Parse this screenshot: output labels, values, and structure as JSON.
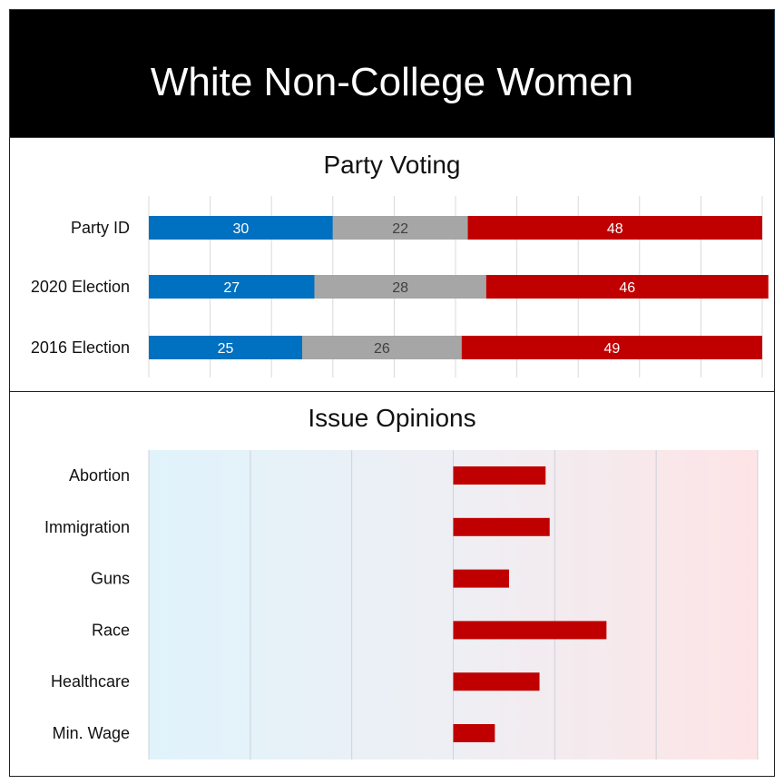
{
  "header": {
    "title": "White Non-College Women"
  },
  "colors": {
    "democrat": "#0070c0",
    "neutral": "#a6a6a6",
    "republican": "#c00000",
    "header_bg": "#000000",
    "gradient_left": "#e0f3fb",
    "gradient_right": "#fde4e6"
  },
  "chart_data": [
    {
      "type": "bar",
      "stacked": true,
      "orientation": "horizontal",
      "title": "Party Voting",
      "categories": [
        "Party ID",
        "2020 Election",
        "2016 Election"
      ],
      "series": [
        {
          "color": "#0070c0",
          "values": [
            30,
            27,
            25
          ]
        },
        {
          "color": "#a6a6a6",
          "values": [
            22,
            28,
            26
          ]
        },
        {
          "color": "#c00000",
          "values": [
            48,
            46,
            49
          ]
        }
      ],
      "xlim": [
        0,
        100
      ],
      "grid": true
    },
    {
      "type": "bar",
      "orientation": "horizontal",
      "title": "Issue Opinions",
      "categories": [
        "Abortion",
        "Immigration",
        "Guns",
        "Race",
        "Healthcare",
        "Min. Wage"
      ],
      "values": [
        0.91,
        0.95,
        0.55,
        1.51,
        0.85,
        0.41
      ],
      "xlim": [
        -3,
        3
      ],
      "grid": true,
      "background": "blue-to-red gradient"
    }
  ]
}
